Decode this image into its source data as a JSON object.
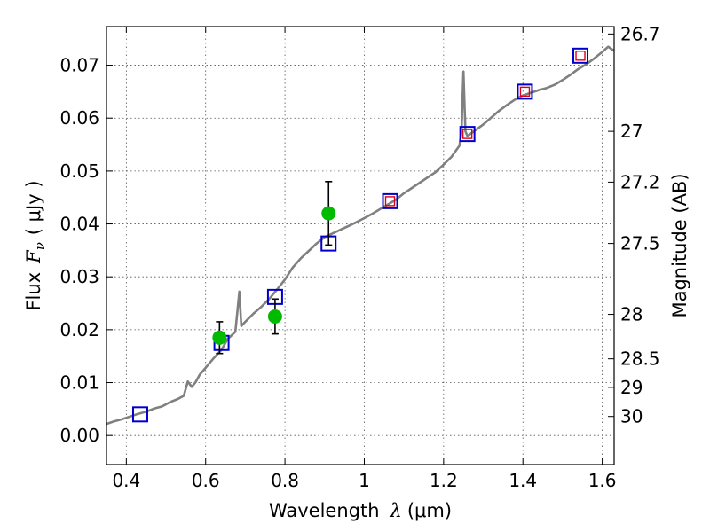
{
  "chart_data": {
    "type": "scatter",
    "xlabel": "Wavelength",
    "xlabel_symbol": "λ",
    "xlabel_unit": "(μm)",
    "ylabel": "Flux",
    "ylabel_symbol": "F",
    "ylabel_subscript": "ν",
    "ylabel_unit": "( μJy )",
    "y2label": "Magnitude (AB)",
    "xlim": [
      0.35,
      1.63
    ],
    "ylim": [
      -0.0055,
      0.0773
    ],
    "grid": true,
    "x_ticks": [
      0.4,
      0.6,
      0.8,
      1.0,
      1.2,
      1.4,
      1.6
    ],
    "x_tick_labels": [
      "0.4",
      "0.6",
      "0.8",
      "1",
      "1.2",
      "1.4",
      "1.6"
    ],
    "y_ticks": [
      0.0,
      0.01,
      0.02,
      0.03,
      0.04,
      0.05,
      0.06,
      0.07
    ],
    "y_tick_labels": [
      "0.00",
      "0.01",
      "0.02",
      "0.03",
      "0.04",
      "0.05",
      "0.06",
      "0.07"
    ],
    "y2_ticks": [
      {
        "label": "26.7",
        "flux": 0.0759
      },
      {
        "label": "27",
        "flux": 0.0575
      },
      {
        "label": "27.2",
        "flux": 0.0479
      },
      {
        "label": "27.5",
        "flux": 0.0363
      },
      {
        "label": "28",
        "flux": 0.0229
      },
      {
        "label": "28.5",
        "flux": 0.0145
      },
      {
        "label": "29",
        "flux": 0.0091
      },
      {
        "label": "30",
        "flux": 0.0036
      }
    ],
    "colors": {
      "model_line": "#808080",
      "observed": "#00bb00",
      "model_band": "#0000cc",
      "predicted": "#e0001c",
      "errorbar": "#000000"
    },
    "series": [
      {
        "type": "line",
        "points": [
          [
            0.35,
            0.0022
          ],
          [
            0.37,
            0.0027
          ],
          [
            0.39,
            0.0031
          ],
          [
            0.41,
            0.0036
          ],
          [
            0.43,
            0.0041
          ],
          [
            0.45,
            0.0045
          ],
          [
            0.47,
            0.0051
          ],
          [
            0.49,
            0.0055
          ],
          [
            0.51,
            0.0063
          ],
          [
            0.53,
            0.0069
          ],
          [
            0.545,
            0.0075
          ],
          [
            0.555,
            0.0102
          ],
          [
            0.565,
            0.0092
          ],
          [
            0.575,
            0.0101
          ],
          [
            0.585,
            0.0115
          ],
          [
            0.6,
            0.0128
          ],
          [
            0.62,
            0.0146
          ],
          [
            0.64,
            0.0162
          ],
          [
            0.655,
            0.0182
          ],
          [
            0.665,
            0.0189
          ],
          [
            0.675,
            0.0196
          ],
          [
            0.685,
            0.0272
          ],
          [
            0.69,
            0.0207
          ],
          [
            0.7,
            0.0215
          ],
          [
            0.72,
            0.023
          ],
          [
            0.74,
            0.0243
          ],
          [
            0.76,
            0.0258
          ],
          [
            0.78,
            0.0276
          ],
          [
            0.8,
            0.0295
          ],
          [
            0.82,
            0.0318
          ],
          [
            0.84,
            0.0335
          ],
          [
            0.86,
            0.0349
          ],
          [
            0.88,
            0.0363
          ],
          [
            0.9,
            0.0375
          ],
          [
            0.92,
            0.0382
          ],
          [
            0.94,
            0.0389
          ],
          [
            0.96,
            0.0396
          ],
          [
            0.98,
            0.0403
          ],
          [
            1.0,
            0.0411
          ],
          [
            1.02,
            0.0419
          ],
          [
            1.04,
            0.0428
          ],
          [
            1.06,
            0.0437
          ],
          [
            1.08,
            0.0446
          ],
          [
            1.1,
            0.0458
          ],
          [
            1.12,
            0.0468
          ],
          [
            1.14,
            0.0478
          ],
          [
            1.16,
            0.0488
          ],
          [
            1.18,
            0.0498
          ],
          [
            1.2,
            0.0512
          ],
          [
            1.22,
            0.0527
          ],
          [
            1.24,
            0.0548
          ],
          [
            1.245,
            0.0575
          ],
          [
            1.25,
            0.0688
          ],
          [
            1.255,
            0.0575
          ],
          [
            1.26,
            0.0566
          ],
          [
            1.28,
            0.0577
          ],
          [
            1.3,
            0.0588
          ],
          [
            1.32,
            0.0601
          ],
          [
            1.34,
            0.0614
          ],
          [
            1.36,
            0.0625
          ],
          [
            1.38,
            0.0635
          ],
          [
            1.4,
            0.0643
          ],
          [
            1.42,
            0.0648
          ],
          [
            1.44,
            0.0653
          ],
          [
            1.46,
            0.0657
          ],
          [
            1.48,
            0.0663
          ],
          [
            1.5,
            0.0672
          ],
          [
            1.52,
            0.0682
          ],
          [
            1.54,
            0.0693
          ],
          [
            1.56,
            0.0702
          ],
          [
            1.58,
            0.0713
          ],
          [
            1.6,
            0.0725
          ],
          [
            1.615,
            0.0735
          ],
          [
            1.63,
            0.0727
          ]
        ]
      },
      {
        "type": "scatter",
        "marker": "circle",
        "points": [
          {
            "x": 0.635,
            "y": 0.0185,
            "err": 0.003
          },
          {
            "x": 0.775,
            "y": 0.0225,
            "err": 0.0033
          },
          {
            "x": 0.91,
            "y": 0.042,
            "err": 0.006
          }
        ]
      },
      {
        "type": "scatter",
        "marker": "square-blue",
        "points": [
          {
            "x": 0.435,
            "y": 0.004
          },
          {
            "x": 0.64,
            "y": 0.0175
          },
          {
            "x": 0.775,
            "y": 0.0262
          },
          {
            "x": 0.91,
            "y": 0.0363
          },
          {
            "x": 1.065,
            "y": 0.0443
          },
          {
            "x": 1.26,
            "y": 0.057
          },
          {
            "x": 1.405,
            "y": 0.065
          },
          {
            "x": 1.545,
            "y": 0.0718
          }
        ]
      },
      {
        "type": "scatter",
        "marker": "square-red",
        "points": [
          {
            "x": 1.065,
            "y": 0.0443
          },
          {
            "x": 1.26,
            "y": 0.057
          },
          {
            "x": 1.405,
            "y": 0.065
          },
          {
            "x": 1.545,
            "y": 0.0718
          }
        ]
      }
    ]
  }
}
